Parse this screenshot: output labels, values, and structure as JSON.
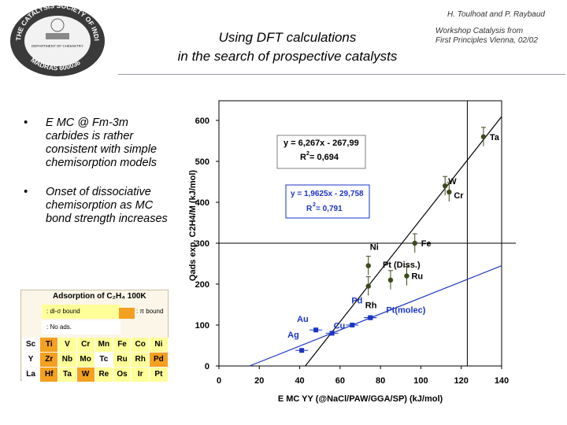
{
  "header": {
    "logo_text": "THE CATALYSIS SOCIETY OF INDIA",
    "logo_department": "DEPARTMENT OF CHEMISTRY",
    "logo_institute": "MADRAS 600036",
    "title_line1": "Using DFT calculations",
    "title_line2": "in the search of prospective catalysts",
    "author": "H. Toulhoat and P. Raybaud",
    "workshop_line1": "Workshop Catalysis from",
    "workshop_line2": "First Principles Vienna, 02/02"
  },
  "bullets": [
    {
      "marker": "•",
      "text": "E MC @ Fm-3m carbides is rather consistent with simple chemisorption models"
    },
    {
      "marker": "•",
      "text": "Onset of dissociative chemisorption as MC bond strength increases"
    }
  ],
  "inset_table": {
    "caption": "Adsorption of C₂H₄ 100K",
    "legend": [
      {
        "label": ": di-σ bound",
        "color": "#ffff99"
      },
      {
        "label": ": No ads.",
        "color": "#ffffff"
      }
    ],
    "legend_pi": ": π bound",
    "legend_pi_color": "#f4a020",
    "rows": [
      [
        {
          "s": "Sc",
          "c": "#ffffff"
        },
        {
          "s": "Ti",
          "c": "#f4a020"
        },
        {
          "s": "V",
          "c": "#ffff99"
        },
        {
          "s": "Cr",
          "c": "#ffff99"
        },
        {
          "s": "Mn",
          "c": "#ffff99"
        },
        {
          "s": "Fe",
          "c": "#ffff99"
        },
        {
          "s": "Co",
          "c": "#ffff99"
        },
        {
          "s": "Ni",
          "c": "#ffff99"
        }
      ],
      [
        {
          "s": "Y",
          "c": "#ffffff"
        },
        {
          "s": "Zr",
          "c": "#f4a020"
        },
        {
          "s": "Nb",
          "c": "#ffff99"
        },
        {
          "s": "Mo",
          "c": "#ffff99"
        },
        {
          "s": "Tc",
          "c": "#ffffff"
        },
        {
          "s": "Ru",
          "c": "#ffff99"
        },
        {
          "s": "Rh",
          "c": "#ffff99"
        },
        {
          "s": "Pd",
          "c": "#f4a020"
        }
      ],
      [
        {
          "s": "La",
          "c": "#ffffff"
        },
        {
          "s": "Hf",
          "c": "#f4a020"
        },
        {
          "s": "Ta",
          "c": "#ffff99"
        },
        {
          "s": "W",
          "c": "#f4a020"
        },
        {
          "s": "Re",
          "c": "#ffff99"
        },
        {
          "s": "Os",
          "c": "#ffff99"
        },
        {
          "s": "Ir",
          "c": "#ffff99"
        },
        {
          "s": "Pt",
          "c": "#ffff99"
        }
      ]
    ]
  },
  "chart_data": {
    "type": "scatter",
    "xlabel": "E MC YY (@NaCl/PAW/GGA/SP) (kJ/mol)",
    "ylabel": "Qads exp. C2H4/M (kJ/mol)",
    "xlim": [
      0,
      140
    ],
    "ylim": [
      0,
      620
    ],
    "xticks": [
      0,
      20,
      40,
      60,
      80,
      100,
      120,
      140
    ],
    "yticks": [
      0,
      100,
      200,
      300,
      400,
      500,
      600
    ],
    "grid": false,
    "reference_lines": {
      "x": 123,
      "y": 300
    },
    "series": [
      {
        "color": "#3b4a1c",
        "marker": "circle",
        "points": [
          {
            "label": "Ta",
            "x": 131,
            "y": 560
          },
          {
            "label": "W",
            "x": 112,
            "y": 440
          },
          {
            "label": "Cr",
            "x": 114,
            "y": 425
          },
          {
            "label": "Fe",
            "x": 97,
            "y": 300
          },
          {
            "label": "Ni",
            "x": 74,
            "y": 245
          },
          {
            "label": "Pt (Diss.)",
            "x": 85,
            "y": 210
          },
          {
            "label": "Ru",
            "x": 93,
            "y": 220
          },
          {
            "label": "Rh",
            "x": 74,
            "y": 195
          }
        ],
        "fit": {
          "equation": "y = 6,267x - 267,99",
          "r2_label": "R",
          "r2_value": " = 0,694",
          "slope": 6.267,
          "intercept": -267.99
        }
      },
      {
        "color": "#1a35c4",
        "marker": "square",
        "points": [
          {
            "label": "Ag",
            "x": 41,
            "y": 38
          },
          {
            "label": "Au",
            "x": 48,
            "y": 88
          },
          {
            "label": "Cu",
            "x": 56,
            "y": 80
          },
          {
            "label": "",
            "x": 66,
            "y": 100
          },
          {
            "label": "Pd",
            "x": 75,
            "y": 118
          },
          {
            "label": "Pt(molec)",
            "x": 75,
            "y": 118
          }
        ],
        "fit": {
          "equation": "y = 1,9625x - 29,758",
          "r2_label": "R",
          "r2_value": " = 0,791",
          "slope": 1.9625,
          "intercept": -29.758
        }
      }
    ]
  }
}
